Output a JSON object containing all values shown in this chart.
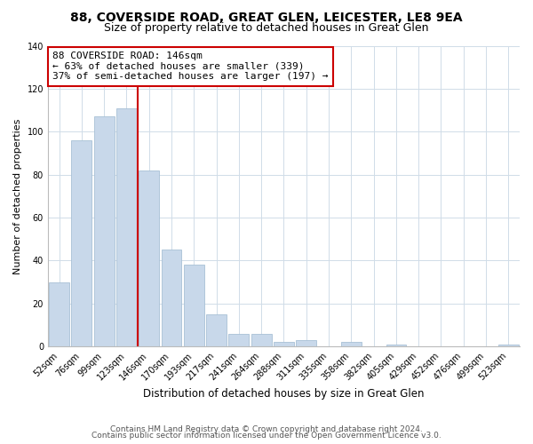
{
  "title": "88, COVERSIDE ROAD, GREAT GLEN, LEICESTER, LE8 9EA",
  "subtitle": "Size of property relative to detached houses in Great Glen",
  "xlabel": "Distribution of detached houses by size in Great Glen",
  "ylabel": "Number of detached properties",
  "bar_labels": [
    "52sqm",
    "76sqm",
    "99sqm",
    "123sqm",
    "146sqm",
    "170sqm",
    "193sqm",
    "217sqm",
    "241sqm",
    "264sqm",
    "288sqm",
    "311sqm",
    "335sqm",
    "358sqm",
    "382sqm",
    "405sqm",
    "429sqm",
    "452sqm",
    "476sqm",
    "499sqm",
    "523sqm"
  ],
  "bar_values": [
    30,
    96,
    107,
    111,
    82,
    45,
    38,
    15,
    6,
    6,
    2,
    3,
    0,
    2,
    0,
    1,
    0,
    0,
    0,
    0,
    1
  ],
  "bar_color": "#c8d8ea",
  "bar_edgecolor": "#a8c0d6",
  "vline_color": "#cc0000",
  "annotation_text": "88 COVERSIDE ROAD: 146sqm\n← 63% of detached houses are smaller (339)\n37% of semi-detached houses are larger (197) →",
  "annotation_box_edgecolor": "#cc0000",
  "annotation_box_facecolor": "#ffffff",
  "ylim": [
    0,
    140
  ],
  "yticks": [
    0,
    20,
    40,
    60,
    80,
    100,
    120,
    140
  ],
  "footer_line1": "Contains HM Land Registry data © Crown copyright and database right 2024.",
  "footer_line2": "Contains public sector information licensed under the Open Government Licence v3.0.",
  "title_fontsize": 10,
  "subtitle_fontsize": 9,
  "xlabel_fontsize": 8.5,
  "ylabel_fontsize": 8,
  "tick_fontsize": 7,
  "annot_fontsize": 8,
  "footer_fontsize": 6.5,
  "background_color": "#ffffff",
  "grid_color": "#d0dce8"
}
